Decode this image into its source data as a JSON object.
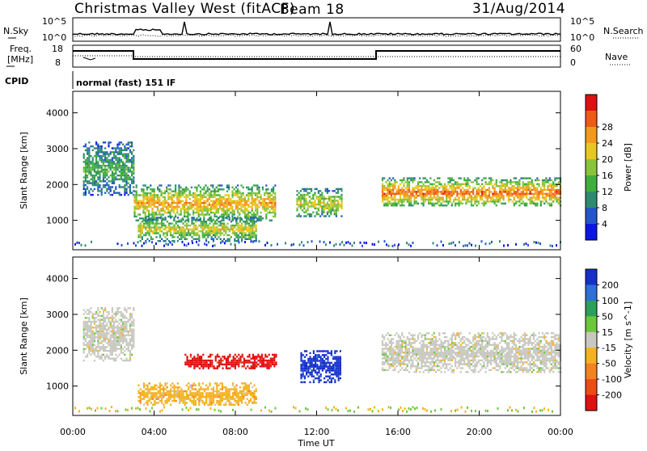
{
  "header": {
    "station": "Christmas Valley West (fitACF)",
    "beam": "Beam 18",
    "date": "31/Aug/2014"
  },
  "panels": {
    "noise": {
      "left_label": "N.Sky",
      "left_ticks": [
        "10^5",
        "10^0"
      ],
      "right_label": "N.Search",
      "right_ticks": [
        "10^5",
        "10^0"
      ]
    },
    "freq": {
      "left_label_1": "Freq.",
      "left_label_2": "[MHz]",
      "left_ticks": [
        "18",
        "8"
      ],
      "right_label": "Nave",
      "right_ticks": [
        "60",
        "0"
      ]
    },
    "cpid": {
      "label": "CPID",
      "text": "normal (fast) 151 lF"
    }
  },
  "chart_data": [
    {
      "type": "heatmap",
      "title": "Power",
      "ylabel": "Slant Range [km]",
      "xlabel": "Time UT",
      "x_ticks": [
        "00:00",
        "04:00",
        "08:00",
        "12:00",
        "16:00",
        "20:00",
        "00:00"
      ],
      "y_ticks": [
        "1000",
        "2000",
        "3000",
        "4000"
      ],
      "ylim": [
        180,
        4600
      ],
      "xlim_hours": [
        0,
        24
      ],
      "colorbar": {
        "label": "Power [dB]",
        "ticks": [
          "4",
          "8",
          "12",
          "16",
          "20",
          "24",
          "28"
        ],
        "colors": [
          "#0a16e6",
          "#2356c8",
          "#2e8a6f",
          "#3fae3c",
          "#8ac43a",
          "#e8c81e",
          "#f39a1d",
          "#ef5a17",
          "#e01010"
        ]
      },
      "echo_regions": [
        {
          "t0": 0.5,
          "t1": 3.0,
          "r0": 1700,
          "r1": 3200,
          "level": 3
        },
        {
          "t0": 3.0,
          "t1": 10.0,
          "r0": 1000,
          "r1": 2000,
          "level": 6
        },
        {
          "t0": 3.2,
          "t1": 9.0,
          "r0": 450,
          "r1": 1100,
          "level": 5
        },
        {
          "t0": 11.0,
          "t1": 13.2,
          "r0": 1100,
          "r1": 1900,
          "level": 5
        },
        {
          "t0": 15.2,
          "t1": 24.0,
          "r0": 1400,
          "r1": 2200,
          "level": 7
        }
      ]
    },
    {
      "type": "heatmap",
      "title": "Velocity",
      "ylabel": "Slant Range [km]",
      "xlabel": "Time UT",
      "x_ticks": [
        "00:00",
        "04:00",
        "08:00",
        "12:00",
        "16:00",
        "20:00",
        "00:00"
      ],
      "y_ticks": [
        "1000",
        "2000",
        "3000",
        "4000"
      ],
      "ylim": [
        180,
        4600
      ],
      "xlim_hours": [
        0,
        24
      ],
      "colorbar": {
        "label": "Velocity [m s^-1]",
        "ticks": [
          "200",
          "100",
          "50",
          "15",
          "-15",
          "-50",
          "-100",
          "-200"
        ],
        "colors": [
          "#1530c8",
          "#2e6fd8",
          "#2aa05a",
          "#6cc83a",
          "#c8c8c0",
          "#f4b21e",
          "#f38220",
          "#ef4a16",
          "#e01010"
        ]
      },
      "echo_regions": [
        {
          "t0": 0.5,
          "t1": 3.0,
          "r0": 1700,
          "r1": 3200,
          "value": 0
        },
        {
          "t0": 5.5,
          "t1": 10.0,
          "r0": 1500,
          "r1": 1900,
          "value": -150
        },
        {
          "t0": 3.2,
          "t1": 9.0,
          "r0": 500,
          "r1": 1100,
          "value": -40
        },
        {
          "t0": 11.2,
          "t1": 13.2,
          "r0": 1100,
          "r1": 2000,
          "value": 150
        },
        {
          "t0": 15.2,
          "t1": 24.0,
          "r0": 1400,
          "r1": 2500,
          "value": 0
        }
      ]
    }
  ],
  "colors": {
    "axis": "#000000",
    "background": "#ffffff"
  }
}
